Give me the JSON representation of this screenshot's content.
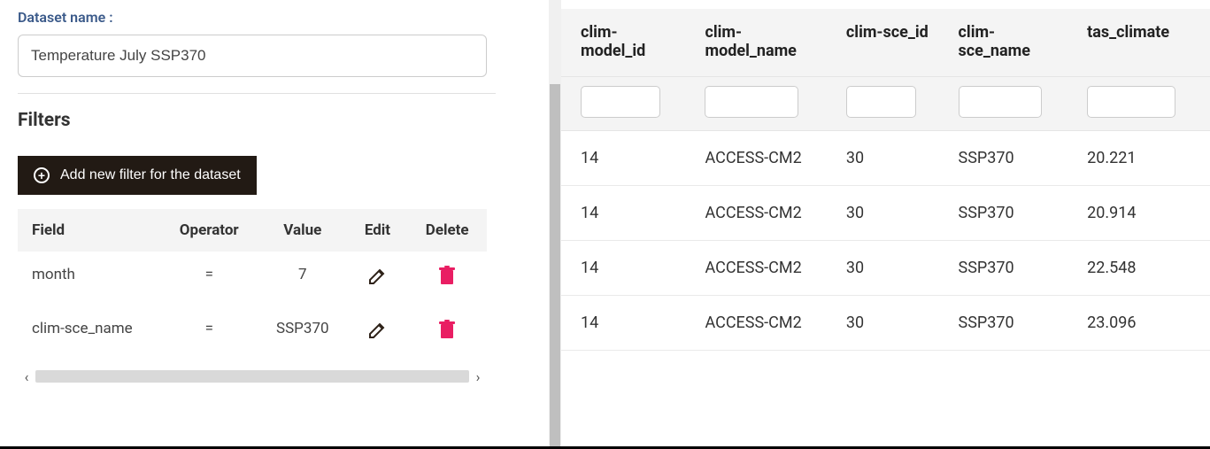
{
  "left": {
    "dataset_label": "Dataset name :",
    "dataset_value": "Temperature July SSP370",
    "filters_title": "Filters",
    "add_filter_label": "Add new filter for the dataset",
    "filters_table": {
      "headers": [
        "Field",
        "Operator",
        "Value",
        "Edit",
        "Delete"
      ],
      "rows": [
        {
          "field": "month",
          "operator": "=",
          "value": "7"
        },
        {
          "field": "clim-sce_name",
          "operator": "=",
          "value": "SSP370"
        }
      ]
    }
  },
  "right": {
    "columns": [
      "clim-model_id",
      "clim-model_name",
      "clim-sce_id",
      "clim-sce_name",
      "tas_climate"
    ],
    "rows": [
      [
        "14",
        "ACCESS-CM2",
        "30",
        "SSP370",
        "20.221"
      ],
      [
        "14",
        "ACCESS-CM2",
        "30",
        "SSP370",
        "20.914"
      ],
      [
        "14",
        "ACCESS-CM2",
        "30",
        "SSP370",
        "22.548"
      ],
      [
        "14",
        "ACCESS-CM2",
        "30",
        "SSP370",
        "23.096"
      ]
    ]
  },
  "colors": {
    "header_bg": "#f4f4f4",
    "accent_delete": "#e91e63",
    "add_btn_bg": "#221a14",
    "label_color": "#3b5a8a"
  }
}
